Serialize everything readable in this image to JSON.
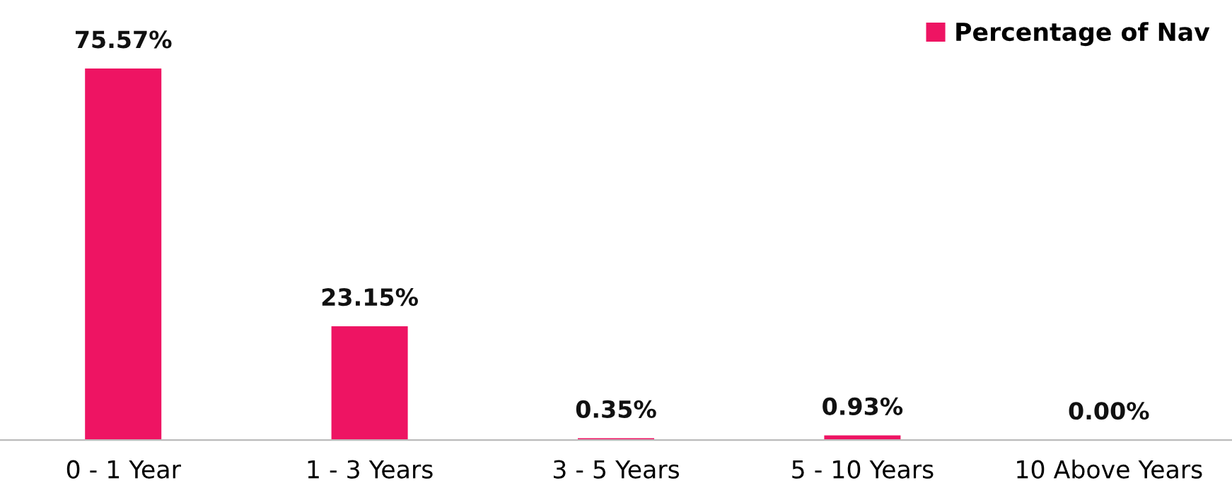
{
  "chart_data": {
    "type": "bar",
    "categories": [
      "0 - 1 Year",
      "1 - 3 Years",
      "3 - 5 Years",
      "5 - 10 Years",
      "10 Above Years"
    ],
    "series": [
      {
        "name": "Percentage of Nav",
        "color": "#ee1463",
        "values": [
          75.57,
          23.15,
          0.35,
          0.93,
          0.0
        ],
        "value_labels": [
          "75.57%",
          "23.15%",
          "0.35%",
          "0.93%",
          "0.00%"
        ]
      }
    ],
    "legend": "top right",
    "grid": false
  }
}
